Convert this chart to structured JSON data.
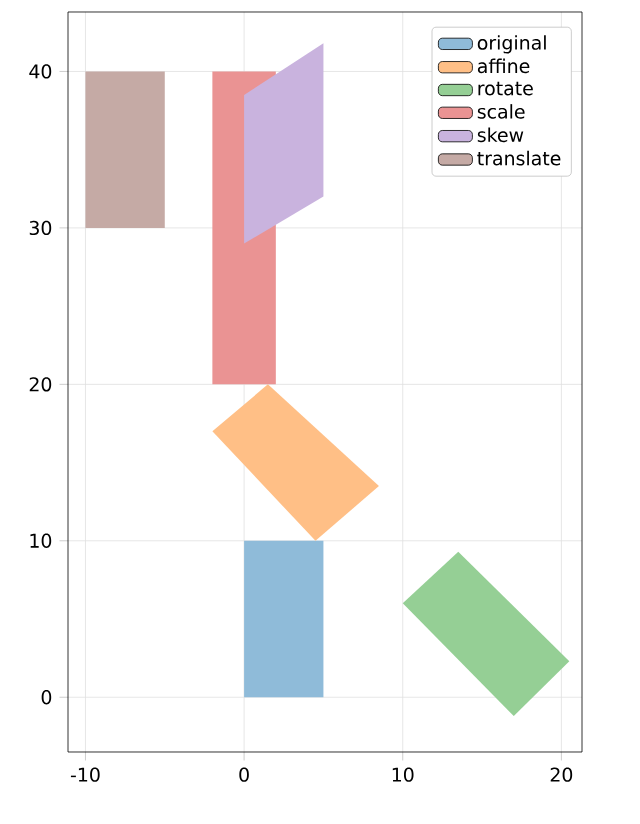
{
  "chart_data": {
    "type": "area",
    "xlim": [
      -11.1,
      21.3
    ],
    "ylim": [
      -3.5,
      43.8
    ],
    "xticks": [
      -10,
      0,
      10,
      20
    ],
    "yticks": [
      0,
      10,
      20,
      30,
      40
    ],
    "grid": true,
    "legend": "top right",
    "series": [
      {
        "name": "original",
        "color": "#8fbbd9",
        "x": [
          0,
          5,
          5,
          0
        ],
        "values": [
          0,
          0,
          10,
          10
        ]
      },
      {
        "name": "affine",
        "color": "#ffbf86",
        "x": [
          -2,
          1.5,
          8.5,
          4.5
        ],
        "values": [
          17,
          20,
          13.5,
          10
        ]
      },
      {
        "name": "rotate",
        "color": "#95cf95",
        "x": [
          10,
          13.5,
          20.5,
          17
        ],
        "values": [
          6,
          9.3,
          2.3,
          -1.2
        ]
      },
      {
        "name": "scale",
        "color": "#ea9393",
        "x": [
          -2,
          2,
          2,
          -2
        ],
        "values": [
          20,
          20,
          40,
          40
        ]
      },
      {
        "name": "skew",
        "color": "#c9b3de",
        "x": [
          0,
          5,
          5,
          0
        ],
        "values": [
          29,
          32,
          41.8,
          38.5
        ]
      },
      {
        "name": "translate",
        "color": "#c5aaa5",
        "x": [
          -10,
          -5,
          -5,
          -10
        ],
        "values": [
          30,
          30,
          40,
          40
        ]
      }
    ]
  }
}
